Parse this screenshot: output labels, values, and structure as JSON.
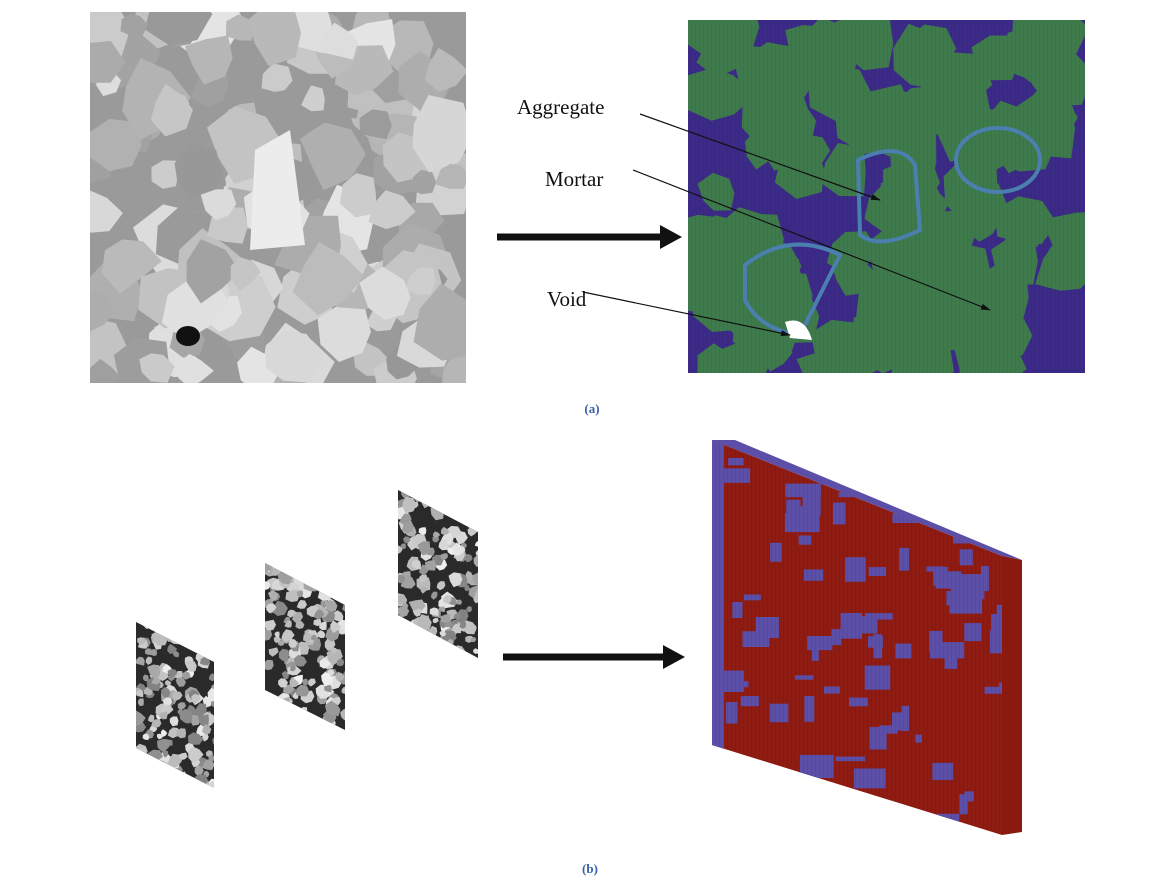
{
  "panels": [
    {
      "caption": "(a)",
      "labels": [
        "Aggregate",
        "Mortar",
        "Void"
      ]
    },
    {
      "caption": "(b)"
    }
  ]
}
